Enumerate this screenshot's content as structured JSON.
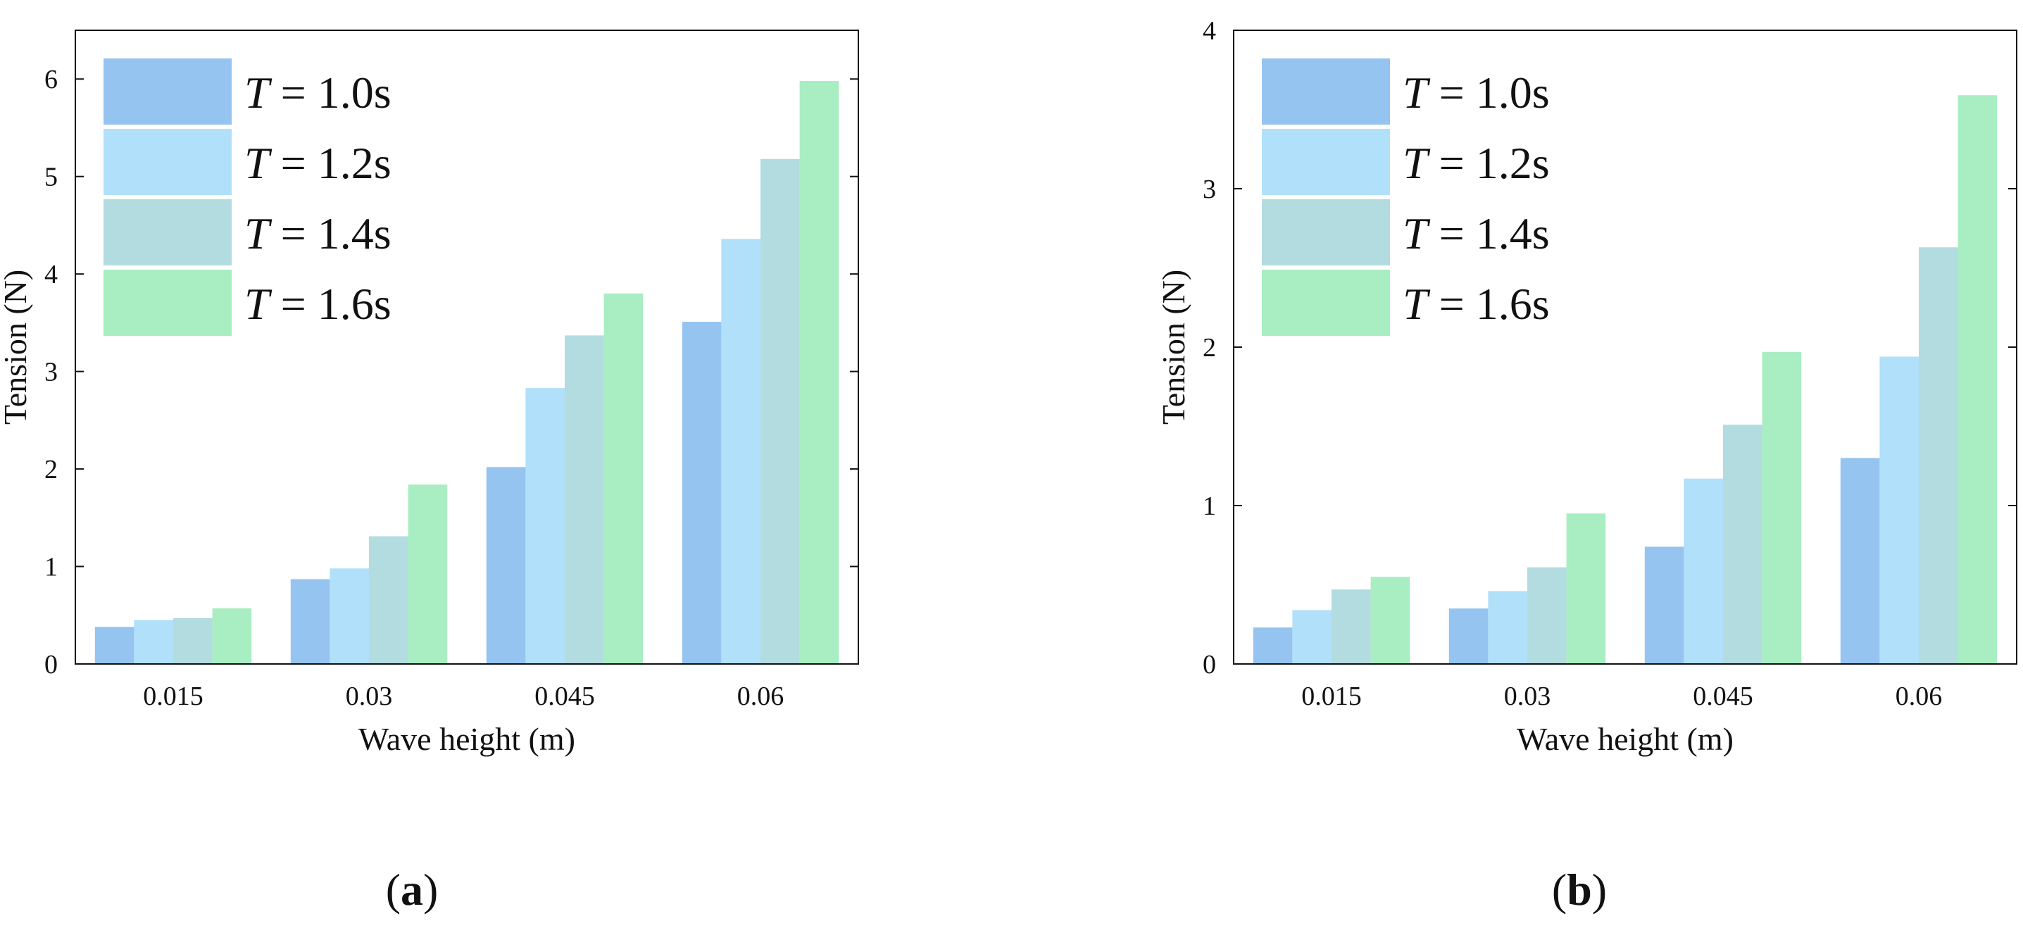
{
  "chart_data": [
    {
      "type": "bar",
      "panel_label": "a",
      "categories": [
        "0.015",
        "0.03",
        "0.045",
        "0.06"
      ],
      "xlabel": "Wave height (m)",
      "ylabel": "Tension (N)",
      "ylim": [
        0,
        6.5
      ],
      "yticks": [
        0,
        1,
        2,
        3,
        4,
        5,
        6
      ],
      "legend_position": "top-left",
      "series": [
        {
          "name": "T = 1.0s",
          "var": "T",
          "rest": " = 1.0s",
          "color": "#96C4F0",
          "values": [
            0.38,
            0.87,
            2.02,
            3.51
          ]
        },
        {
          "name": "T = 1.2s",
          "var": "T",
          "rest": " = 1.2s",
          "color": "#B0E0FA",
          "values": [
            0.45,
            0.98,
            2.83,
            4.36
          ]
        },
        {
          "name": "T = 1.4s",
          "var": "T",
          "rest": " = 1.4s",
          "color": "#B2DCE0",
          "values": [
            0.47,
            1.31,
            3.37,
            5.18
          ]
        },
        {
          "name": "T = 1.6s",
          "var": "T",
          "rest": " = 1.6s",
          "color": "#A8EEC2",
          "values": [
            0.57,
            1.84,
            3.8,
            5.98
          ]
        }
      ]
    },
    {
      "type": "bar",
      "panel_label": "b",
      "categories": [
        "0.015",
        "0.03",
        "0.045",
        "0.06"
      ],
      "xlabel": "Wave height (m)",
      "ylabel": "Tension (N)",
      "ylim": [
        0,
        4
      ],
      "yticks": [
        0,
        1,
        2,
        3,
        4
      ],
      "legend_position": "top-left",
      "series": [
        {
          "name": "T = 1.0s",
          "var": "T",
          "rest": " = 1.0s",
          "color": "#96C4F0",
          "values": [
            0.23,
            0.35,
            0.74,
            1.3
          ]
        },
        {
          "name": "T = 1.2s",
          "var": "T",
          "rest": " = 1.2s",
          "color": "#B0E0FA",
          "values": [
            0.34,
            0.46,
            1.17,
            1.94
          ]
        },
        {
          "name": "T = 1.4s",
          "var": "T",
          "rest": " = 1.4s",
          "color": "#B2DCE0",
          "values": [
            0.47,
            0.61,
            1.51,
            2.63
          ]
        },
        {
          "name": "T = 1.6s",
          "var": "T",
          "rest": " = 1.6s",
          "color": "#A8EEC2",
          "values": [
            0.55,
            0.95,
            1.97,
            3.59
          ]
        }
      ]
    }
  ]
}
